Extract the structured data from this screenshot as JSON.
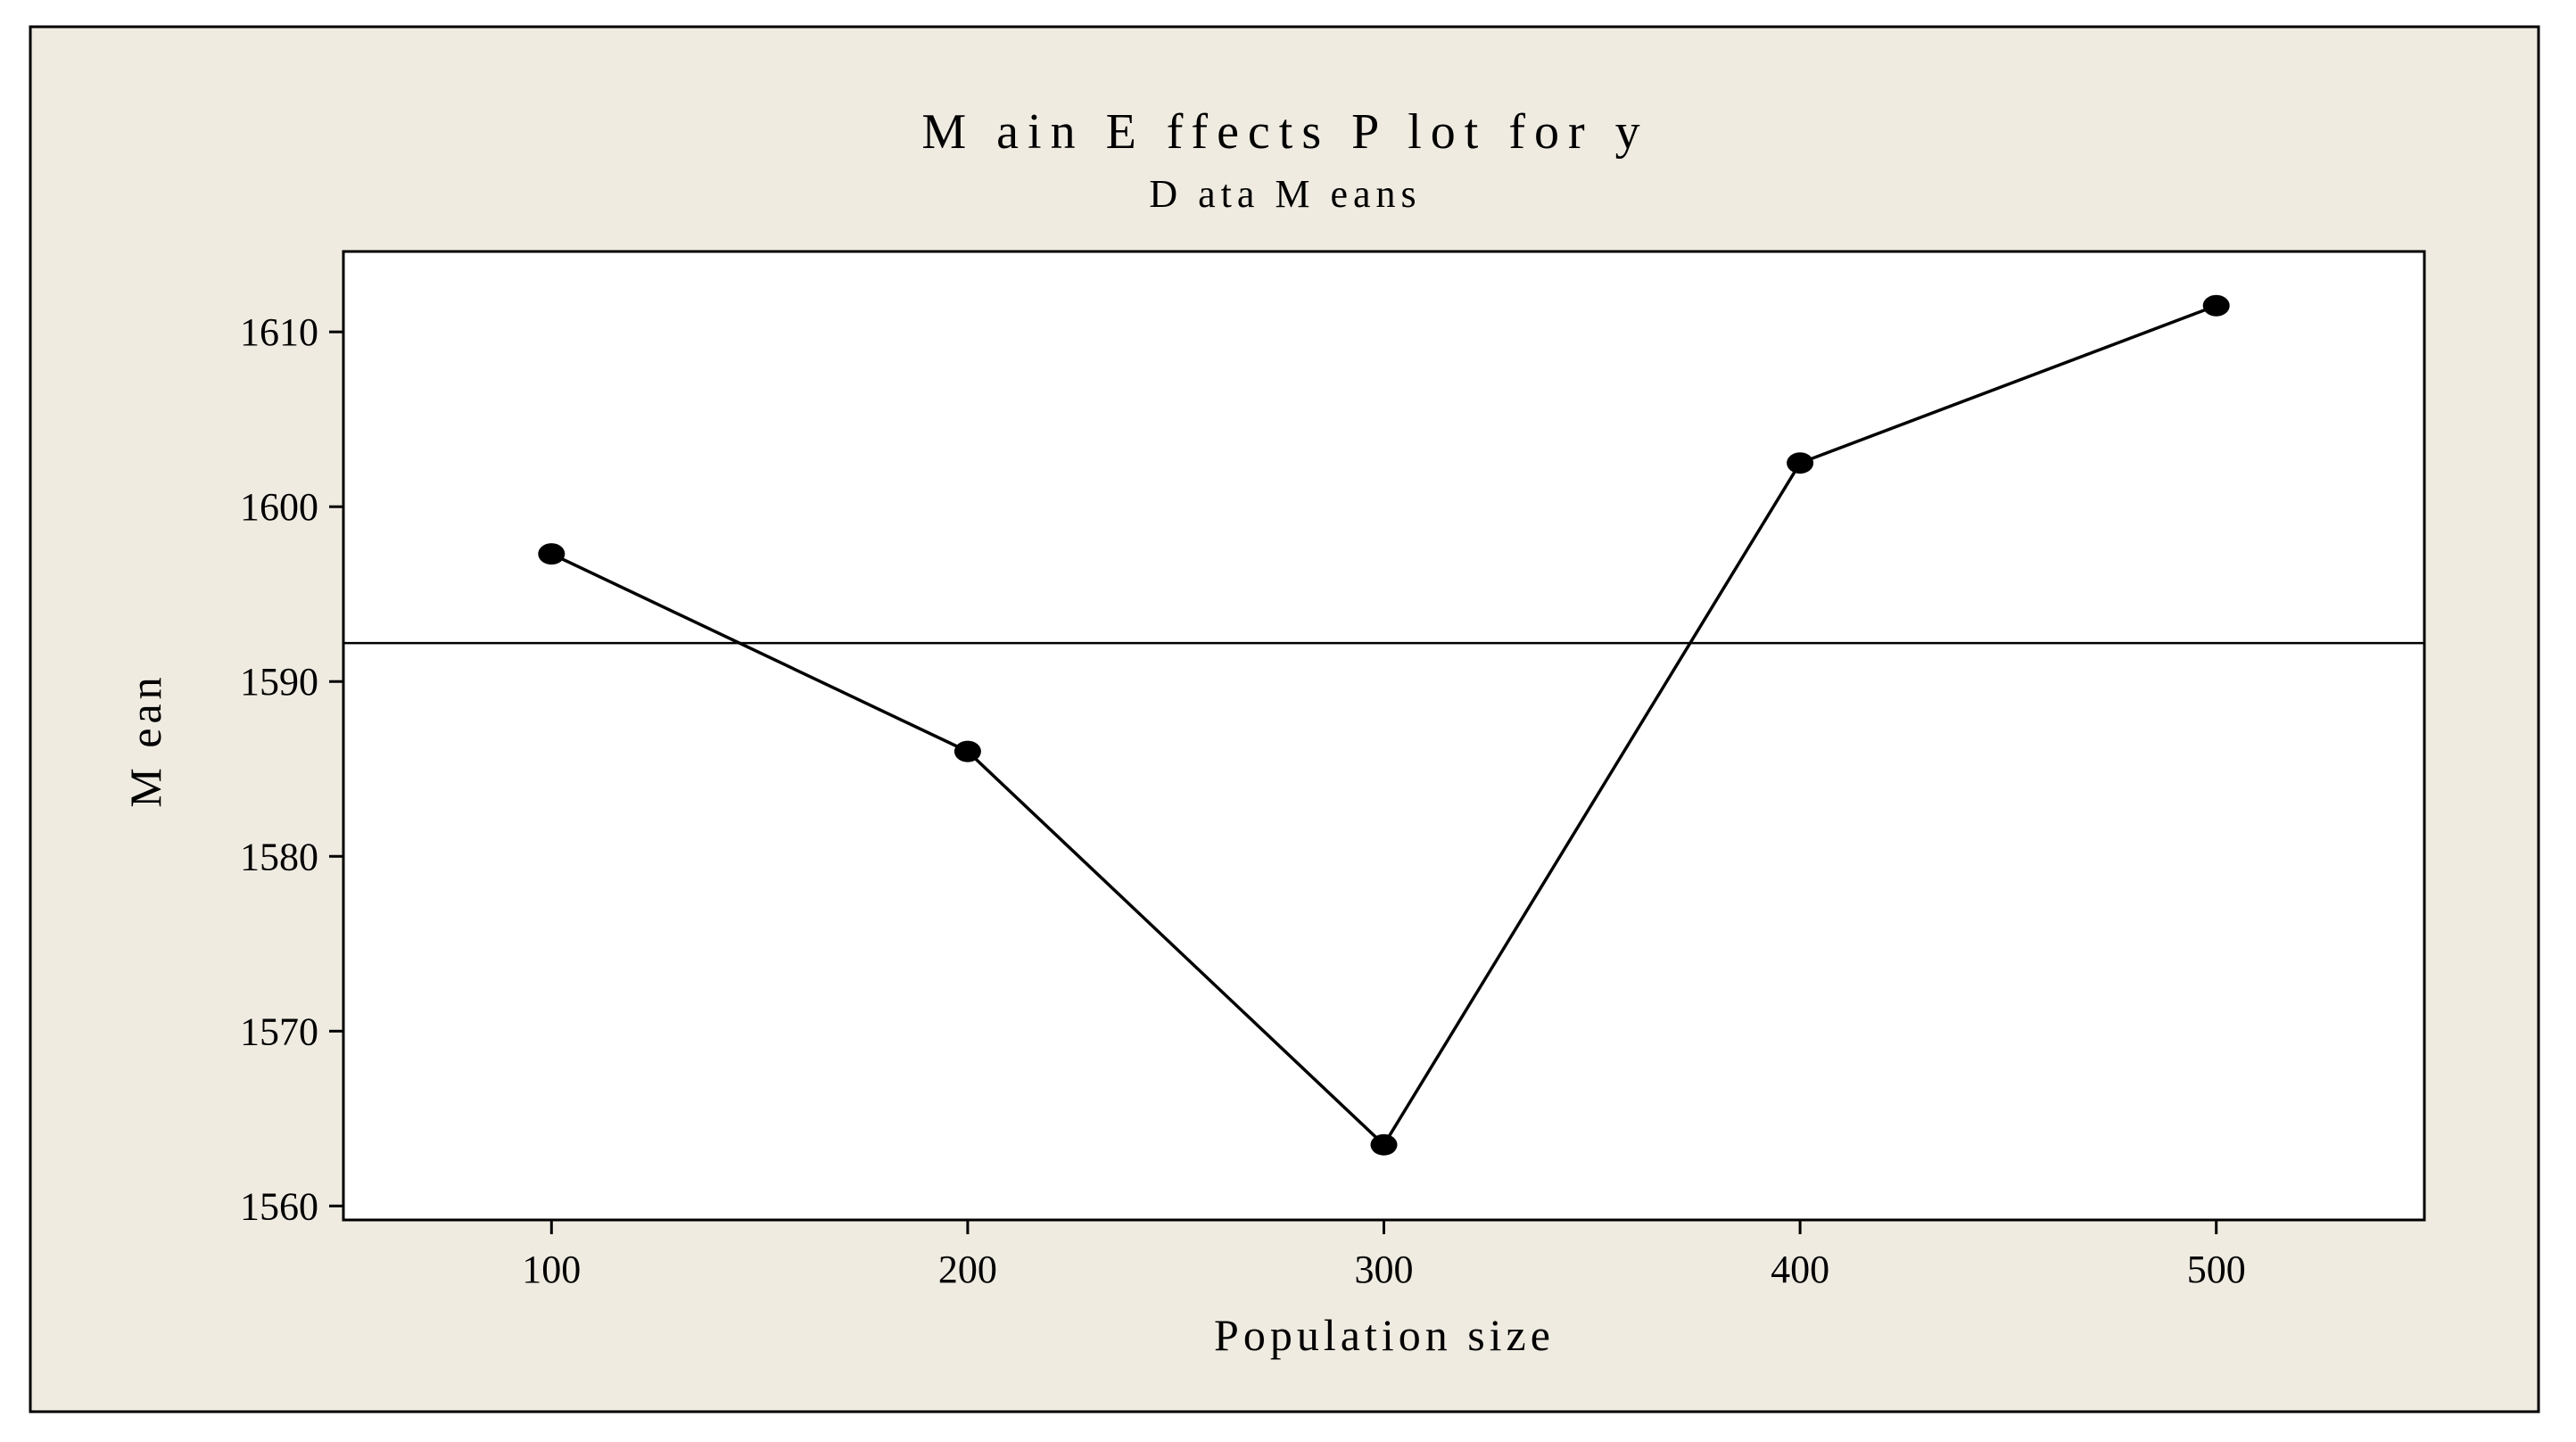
{
  "colors": {
    "frame_background": "#efebe1",
    "plot_background": "#ffffff",
    "line": "#000000"
  },
  "chart_data": {
    "type": "line",
    "title": "M ain E ffects P lot for y",
    "subtitle": "D ata M eans",
    "xlabel": "Population size",
    "ylabel": "M ean",
    "xlim": [
      50,
      550
    ],
    "ylim": [
      1559.2,
      1614.6
    ],
    "x": [
      100,
      200,
      300,
      400,
      500
    ],
    "y": [
      1597.3,
      1586.0,
      1563.5,
      1602.5,
      1611.5
    ],
    "xticks": [
      100,
      200,
      300,
      400,
      500
    ],
    "xtick_labels": [
      "100",
      "200",
      "300",
      "400",
      "500"
    ],
    "yticks": [
      1560,
      1570,
      1580,
      1590,
      1600,
      1610
    ],
    "ytick_labels": [
      "1560",
      "1570",
      "1580",
      "1590",
      "1600",
      "1610"
    ],
    "reference_line": 1592.2,
    "grid": false,
    "legend": false,
    "marker": "filled-circle"
  }
}
